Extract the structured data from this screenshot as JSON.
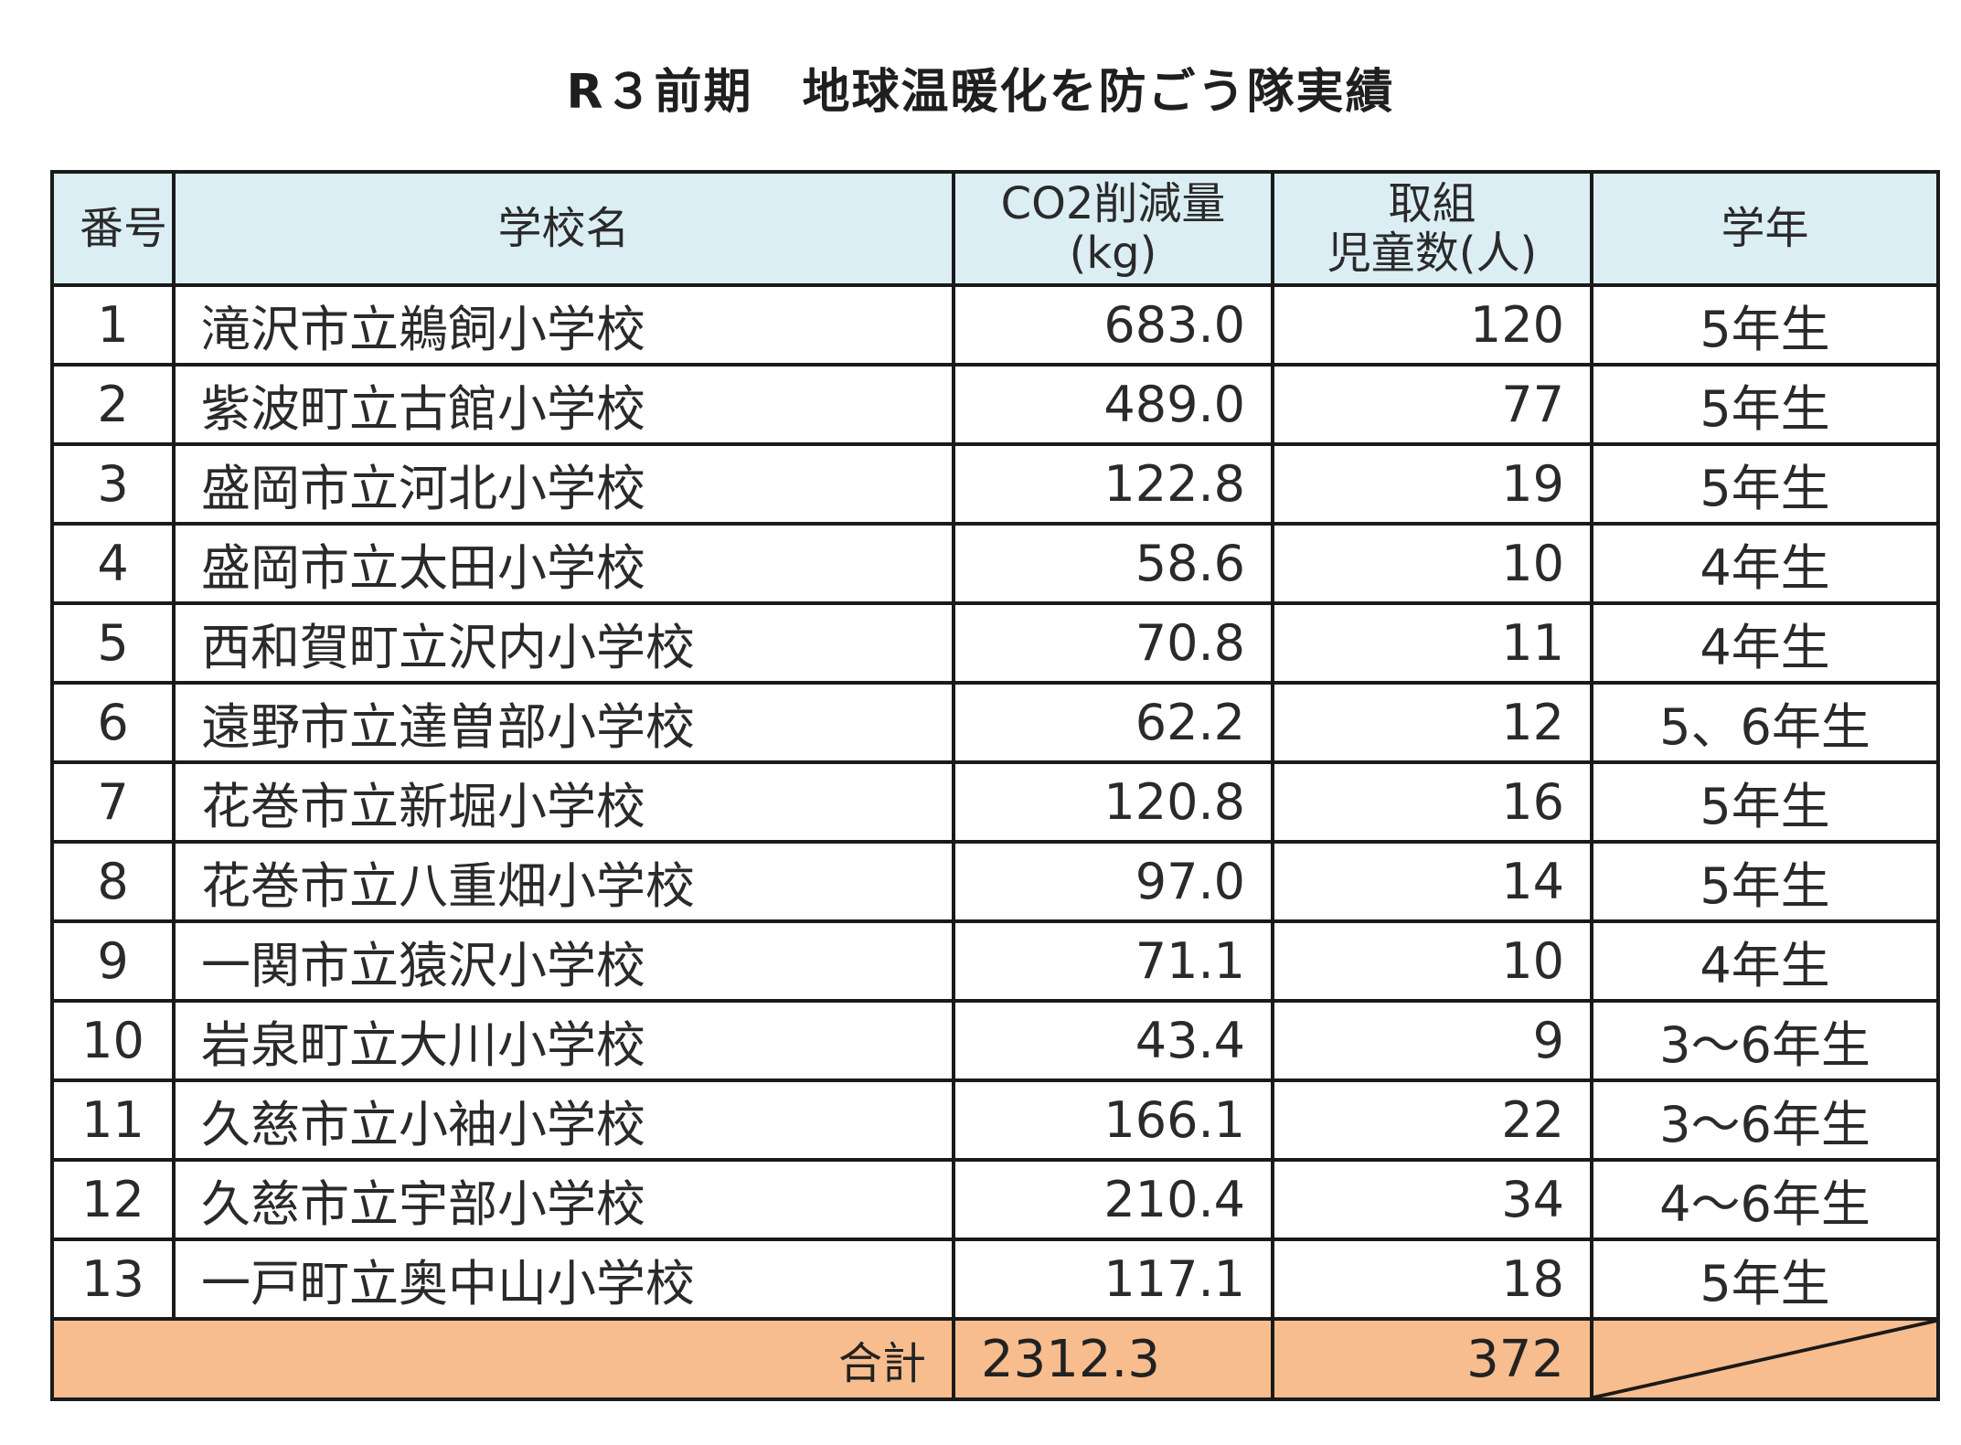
{
  "title": "R３前期　地球温暖化を防ごう隊実績",
  "headers": {
    "no": "番号",
    "school": "学校名",
    "co2_line1": "CO2削減量",
    "co2_line2": "(kg)",
    "kids_line1": "取組",
    "kids_line2": "児童数(人)",
    "grade": "学年"
  },
  "rows": [
    {
      "no": "1",
      "school": "滝沢市立鵜飼小学校",
      "co2": "683.0",
      "kids": "120",
      "grade": "5年生"
    },
    {
      "no": "2",
      "school": "紫波町立古館小学校",
      "co2": "489.0",
      "kids": "77",
      "grade": "5年生"
    },
    {
      "no": "3",
      "school": "盛岡市立河北小学校",
      "co2": "122.8",
      "kids": "19",
      "grade": "5年生"
    },
    {
      "no": "4",
      "school": "盛岡市立太田小学校",
      "co2": "58.6",
      "kids": "10",
      "grade": "4年生"
    },
    {
      "no": "5",
      "school": "西和賀町立沢内小学校",
      "co2": "70.8",
      "kids": "11",
      "grade": "4年生"
    },
    {
      "no": "6",
      "school": "遠野市立達曽部小学校",
      "co2": "62.2",
      "kids": "12",
      "grade": "5、6年生"
    },
    {
      "no": "7",
      "school": "花巻市立新堀小学校",
      "co2": "120.8",
      "kids": "16",
      "grade": "5年生"
    },
    {
      "no": "8",
      "school": "花巻市立八重畑小学校",
      "co2": "97.0",
      "kids": "14",
      "grade": "5年生"
    },
    {
      "no": "9",
      "school": "一関市立猿沢小学校",
      "co2": "71.1",
      "kids": "10",
      "grade": "4年生"
    },
    {
      "no": "10",
      "school": "岩泉町立大川小学校",
      "co2": "43.4",
      "kids": "9",
      "grade": "3～6年生"
    },
    {
      "no": "11",
      "school": "久慈市立小袖小学校",
      "co2": "166.1",
      "kids": "22",
      "grade": "3～6年生"
    },
    {
      "no": "12",
      "school": "久慈市立宇部小学校",
      "co2": "210.4",
      "kids": "34",
      "grade": "4～6年生"
    },
    {
      "no": "13",
      "school": "一戸町立奥中山小学校",
      "co2": "117.1",
      "kids": "18",
      "grade": "5年生"
    }
  ],
  "total": {
    "label": "合計",
    "co2": "2312.3",
    "kids": "372"
  },
  "colors": {
    "header_bg": "#dbeef4",
    "total_bg": "#f8bd8e",
    "border": "#1a1a1a"
  }
}
